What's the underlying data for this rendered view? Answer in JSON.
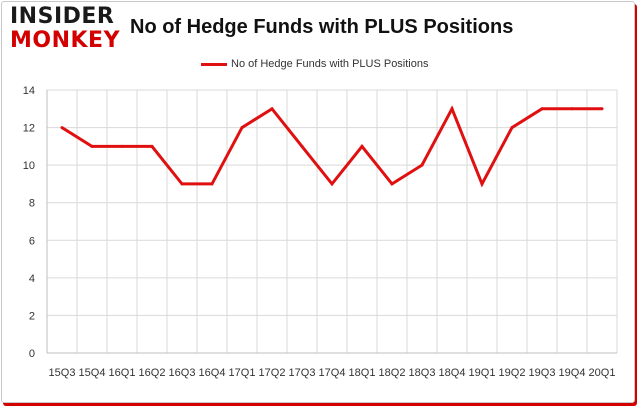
{
  "logo": {
    "line1": "INSIDER",
    "line2": "MONKEY"
  },
  "chart_data": {
    "type": "line",
    "title": "No of Hedge Funds with PLUS Positions",
    "xlabel": "",
    "ylabel": "",
    "categories": [
      "15Q3",
      "15Q4",
      "16Q1",
      "16Q2",
      "16Q3",
      "16Q4",
      "17Q1",
      "17Q2",
      "17Q3",
      "17Q4",
      "18Q1",
      "18Q2",
      "18Q3",
      "18Q4",
      "19Q1",
      "19Q2",
      "19Q3",
      "19Q4",
      "20Q1"
    ],
    "series": [
      {
        "name": "No of Hedge Funds with PLUS Positions",
        "values": [
          12,
          11,
          11,
          11,
          9,
          9,
          12,
          13,
          11,
          9,
          11,
          9,
          10,
          13,
          9,
          12,
          13,
          13,
          13
        ]
      }
    ],
    "ylim": [
      0,
      14
    ],
    "yticks": [
      0,
      2,
      4,
      6,
      8,
      10,
      12,
      14
    ],
    "grid": true,
    "legend_position": "top-center",
    "colors": {
      "line": "#e01010",
      "grid": "#d9d9d9",
      "brand": "#d40000"
    }
  }
}
